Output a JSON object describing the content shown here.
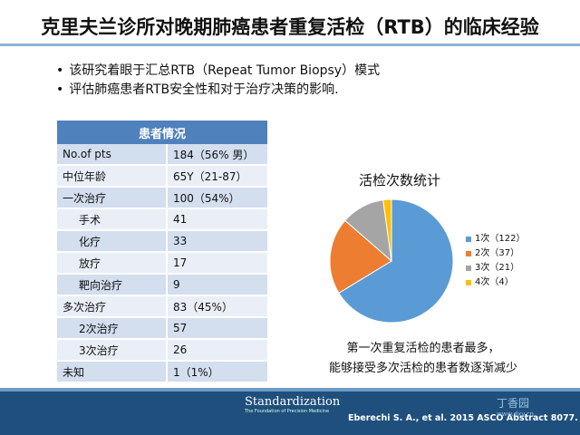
{
  "title": "克里夫兰诊所对晚期肺癌患者重复活检（RTB）的临床经验",
  "bullets": [
    "该研究着眼于汇总RTB（Repeat Tumor Biopsy）模式",
    "评估肺癌患者RTB安全性和对于治疗决策的影响."
  ],
  "table": {
    "header": "患者情况",
    "rows": [
      {
        "label": "No.of pts",
        "value": "184（56% 男）",
        "indent": false
      },
      {
        "label": "中位年龄",
        "value": "65Y（21-87）",
        "indent": false
      },
      {
        "label": "一次治疗",
        "value": "100（54%）",
        "indent": false
      },
      {
        "label": "手术",
        "value": "41",
        "indent": true
      },
      {
        "label": "化疗",
        "value": "33",
        "indent": true
      },
      {
        "label": "放疗",
        "value": "17",
        "indent": true
      },
      {
        "label": "靶向治疗",
        "value": "9",
        "indent": true
      },
      {
        "label": "多次治疗",
        "value": "83（45%）",
        "indent": false
      },
      {
        "label": "2次治疗",
        "value": "57",
        "indent": true
      },
      {
        "label": "3次治疗",
        "value": "26",
        "indent": true
      },
      {
        "label": "未知",
        "value": "1（1%）",
        "indent": false
      }
    ]
  },
  "chart_title": "活检次数统计",
  "chart_data": {
    "type": "pie",
    "title": "活检次数统计",
    "legend_position": "right",
    "slices": [
      {
        "label": "1次（122）",
        "value": 122,
        "color": "#5b9bd5"
      },
      {
        "label": "2次（37）",
        "value": 37,
        "color": "#ed7d31"
      },
      {
        "label": "3次（21）",
        "value": 21,
        "color": "#a5a5a5"
      },
      {
        "label": "4次（4）",
        "value": 4,
        "color": "#ffc000"
      }
    ]
  },
  "note": [
    "第一次重复活检的患者最多，",
    "能够接受多次活检的患者数逐渐减少"
  ],
  "footer": {
    "logo_main": "Standardization",
    "logo_sub": "The Foundation of Precision Medicine",
    "citation": "Eberechi S. A., et al. 2015 ASCO Abstract 8077.",
    "watermark": "丁香园",
    "watermark_url": "www.dxy.cn"
  }
}
